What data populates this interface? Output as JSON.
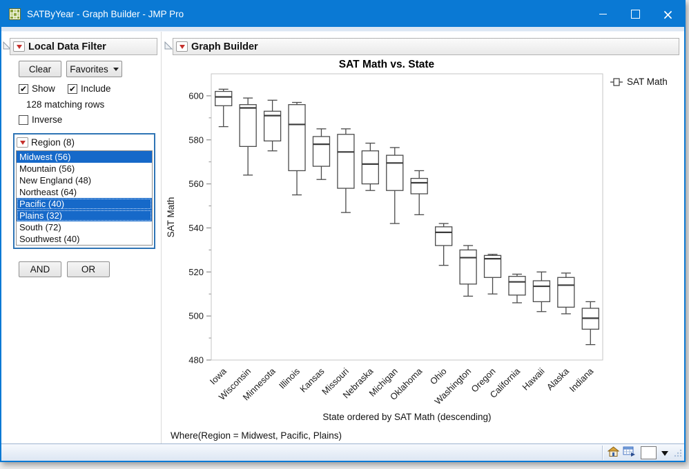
{
  "window": {
    "title": "SATByYear - Graph Builder - JMP Pro"
  },
  "filter_panel": {
    "title": "Local Data Filter",
    "buttons": {
      "clear": "Clear",
      "favorites": "Favorites",
      "and": "AND",
      "or": "OR"
    },
    "checkboxes": {
      "show": {
        "label": "Show",
        "checked": true
      },
      "include": {
        "label": "Include",
        "checked": true
      },
      "inverse": {
        "label": "Inverse",
        "checked": false
      }
    },
    "matching_rows": "128 matching rows",
    "region": {
      "title": "Region (8)",
      "items": [
        {
          "label": "Midwest (56)",
          "selected": true,
          "focused": false
        },
        {
          "label": "Mountain (56)",
          "selected": false,
          "focused": false
        },
        {
          "label": "New England (48)",
          "selected": false,
          "focused": false
        },
        {
          "label": "Northeast (64)",
          "selected": false,
          "focused": false
        },
        {
          "label": "Pacific (40)",
          "selected": true,
          "focused": true
        },
        {
          "label": "Plains (32)",
          "selected": true,
          "focused": true
        },
        {
          "label": "South (72)",
          "selected": false,
          "focused": false
        },
        {
          "label": "Southwest (40)",
          "selected": false,
          "focused": false
        }
      ]
    }
  },
  "graph_panel": {
    "title": "Graph Builder",
    "legend_label": "SAT Math",
    "where_note": "Where(Region = Midwest, Pacific, Plains)"
  },
  "status_bar": {
    "icons": [
      "home-icon",
      "data-table-window-icon",
      "color-swatch",
      "dropdown-caret",
      "resize-grip"
    ]
  },
  "colors": {
    "titlebar": "#0a79d4",
    "selection_blue": "#1669c9",
    "accent_red": "#c5302c",
    "box_stroke": "#4a4a4a"
  },
  "chart_data": {
    "type": "box",
    "title": "SAT Math vs. State",
    "xlabel": "State ordered by SAT Math (descending)",
    "ylabel": "SAT Math",
    "ylim": [
      480,
      610
    ],
    "yticks": [
      480,
      500,
      520,
      540,
      560,
      580,
      600
    ],
    "grid": false,
    "legend_position": "right",
    "categories": [
      "Iowa",
      "Wisconsin",
      "Minnesota",
      "Illinois",
      "Kansas",
      "Missouri",
      "Nebraska",
      "Michigan",
      "Oklahoma",
      "Ohio",
      "Washington",
      "Oregon",
      "California",
      "Hawaii",
      "Alaska",
      "Indiana"
    ],
    "series": [
      {
        "name": "SAT Math",
        "boxes": [
          {
            "min": 586,
            "q1": 595.5,
            "med": 599.5,
            "q3": 602,
            "max": 603
          },
          {
            "min": 564,
            "q1": 577,
            "med": 594.5,
            "q3": 596,
            "max": 599
          },
          {
            "min": 575,
            "q1": 579.5,
            "med": 591,
            "q3": 593,
            "max": 598
          },
          {
            "min": 555,
            "q1": 566,
            "med": 587,
            "q3": 596,
            "max": 597
          },
          {
            "min": 562,
            "q1": 568,
            "med": 578,
            "q3": 581.5,
            "max": 585
          },
          {
            "min": 547,
            "q1": 558,
            "med": 574.5,
            "q3": 582.5,
            "max": 585
          },
          {
            "min": 557,
            "q1": 560,
            "med": 569,
            "q3": 575,
            "max": 578.5
          },
          {
            "min": 542,
            "q1": 557,
            "med": 569.5,
            "q3": 573,
            "max": 576.5
          },
          {
            "min": 546,
            "q1": 555.5,
            "med": 560.5,
            "q3": 562.5,
            "max": 566
          },
          {
            "min": 523,
            "q1": 532,
            "med": 538,
            "q3": 540.5,
            "max": 542
          },
          {
            "min": 509,
            "q1": 514.5,
            "med": 526.5,
            "q3": 530,
            "max": 532
          },
          {
            "min": 510,
            "q1": 517.5,
            "med": 526,
            "q3": 527.5,
            "max": 528
          },
          {
            "min": 506,
            "q1": 509.5,
            "med": 515.5,
            "q3": 518,
            "max": 519
          },
          {
            "min": 502,
            "q1": 506.5,
            "med": 513.5,
            "q3": 516,
            "max": 520
          },
          {
            "min": 501,
            "q1": 504,
            "med": 514,
            "q3": 517.5,
            "max": 519.5
          },
          {
            "min": 487,
            "q1": 494,
            "med": 499,
            "q3": 503.5,
            "max": 506.5
          }
        ]
      }
    ]
  }
}
